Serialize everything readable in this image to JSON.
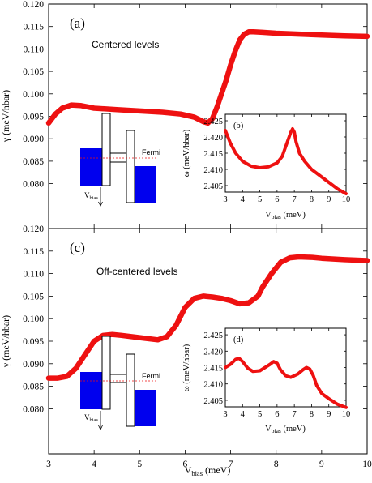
{
  "chart_data": [
    {
      "id": "a",
      "type": "line",
      "panel_label": "(a)",
      "annotation": "Centered levels",
      "ylabel": "γ (meV/hbar)",
      "xlim": [
        3,
        10
      ],
      "ylim": [
        0.07,
        0.12
      ],
      "xticks": [
        "3",
        "4",
        "5",
        "6",
        "7",
        "8",
        "9",
        "10"
      ],
      "yticks": [
        "0.080",
        "0.085",
        "0.090",
        "0.095",
        "0.100",
        "0.105",
        "0.110",
        "0.115",
        "0.120"
      ],
      "series": [
        {
          "color": "#ee1111",
          "x": [
            3.0,
            3.15,
            3.3,
            3.5,
            3.7,
            4.0,
            4.5,
            5.0,
            5.5,
            5.9,
            6.2,
            6.4,
            6.5,
            6.6,
            6.7,
            6.8,
            6.9,
            7.0,
            7.1,
            7.2,
            7.3,
            7.4,
            7.5,
            7.7,
            8.0,
            8.5,
            9.0,
            9.5,
            10.0
          ],
          "y": [
            0.0935,
            0.0955,
            0.0968,
            0.0975,
            0.0974,
            0.0968,
            0.0965,
            0.0962,
            0.0959,
            0.0955,
            0.0948,
            0.0938,
            0.0935,
            0.0945,
            0.097,
            0.1,
            0.103,
            0.1065,
            0.1095,
            0.112,
            0.1133,
            0.1138,
            0.1138,
            0.1137,
            0.1135,
            0.1133,
            0.1131,
            0.1129,
            0.1128
          ]
        }
      ]
    },
    {
      "id": "b",
      "type": "line",
      "panel_label": "(b)",
      "xlabel": "V",
      "xlabel_sub": "bias",
      "xlabel_unit": " (meV)",
      "ylabel": "ω (meV/hbar)",
      "xlim": [
        3,
        10
      ],
      "ylim": [
        2.403,
        2.427
      ],
      "xticks": [
        "3",
        "4",
        "5",
        "6",
        "7",
        "8",
        "9",
        "10"
      ],
      "yticks": [
        "2.405",
        "2.410",
        "2.415",
        "2.420",
        "2.425"
      ],
      "series": [
        {
          "color": "#ee1111",
          "x": [
            3.0,
            3.3,
            3.6,
            4.0,
            4.5,
            5.0,
            5.5,
            6.0,
            6.3,
            6.6,
            6.8,
            6.9,
            7.0,
            7.1,
            7.3,
            7.6,
            8.0,
            8.5,
            9.0,
            9.5,
            10.0
          ],
          "y": [
            2.422,
            2.418,
            2.415,
            2.4125,
            2.411,
            2.4105,
            2.4108,
            2.412,
            2.414,
            2.4185,
            2.4215,
            2.4225,
            2.4215,
            2.4185,
            2.415,
            2.4125,
            2.41,
            2.408,
            2.406,
            2.404,
            2.4025
          ]
        }
      ]
    },
    {
      "id": "c",
      "type": "line",
      "panel_label": "(c)",
      "annotation": "Off-centered levels",
      "xlabel": "V",
      "xlabel_sub": "bias",
      "xlabel_unit": " (meV)",
      "ylabel": "γ (meV/hbar)",
      "xlim": [
        3,
        10
      ],
      "ylim": [
        0.07,
        0.12
      ],
      "xticks": [
        "3",
        "4",
        "5",
        "6",
        "7",
        "8",
        "9",
        "10"
      ],
      "yticks": [
        "0.080",
        "0.085",
        "0.090",
        "0.095",
        "0.100",
        "0.105",
        "0.110",
        "0.115",
        "0.120"
      ],
      "series": [
        {
          "color": "#ee1111",
          "x": [
            3.0,
            3.2,
            3.4,
            3.6,
            3.8,
            4.0,
            4.2,
            4.4,
            4.6,
            5.0,
            5.4,
            5.6,
            5.8,
            6.0,
            6.2,
            6.4,
            6.6,
            6.8,
            7.0,
            7.2,
            7.4,
            7.6,
            7.7,
            7.9,
            8.1,
            8.3,
            8.5,
            8.8,
            9.0,
            9.5,
            10.0
          ],
          "y": [
            0.0868,
            0.0868,
            0.0872,
            0.089,
            0.092,
            0.095,
            0.0963,
            0.0965,
            0.0963,
            0.0958,
            0.0953,
            0.096,
            0.0985,
            0.1025,
            0.1045,
            0.105,
            0.1048,
            0.1045,
            0.104,
            0.1033,
            0.1035,
            0.105,
            0.107,
            0.11,
            0.1125,
            0.1135,
            0.1137,
            0.1136,
            0.1134,
            0.1131,
            0.1129
          ]
        }
      ]
    },
    {
      "id": "d",
      "type": "line",
      "panel_label": "(d)",
      "xlabel": "V",
      "xlabel_sub": "bias",
      "xlabel_unit": " (meV)",
      "ylabel": "ω (meV/hbar)",
      "xlim": [
        3,
        10
      ],
      "ylim": [
        2.403,
        2.427
      ],
      "xticks": [
        "3",
        "4",
        "5",
        "6",
        "7",
        "8",
        "9",
        "10"
      ],
      "yticks": [
        "2.405",
        "2.410",
        "2.415",
        "2.420",
        "2.425"
      ],
      "series": [
        {
          "color": "#ee1111",
          "x": [
            3.0,
            3.3,
            3.6,
            3.8,
            4.0,
            4.3,
            4.6,
            5.0,
            5.3,
            5.6,
            5.8,
            6.0,
            6.2,
            6.5,
            6.8,
            7.2,
            7.5,
            7.7,
            7.9,
            8.1,
            8.3,
            8.6,
            9.0,
            9.5,
            10.0
          ],
          "y": [
            2.415,
            2.416,
            2.4175,
            2.4178,
            2.4168,
            2.4148,
            2.4138,
            2.414,
            2.415,
            2.416,
            2.4168,
            2.4163,
            2.4143,
            2.4125,
            2.412,
            2.413,
            2.4143,
            2.415,
            2.4145,
            2.4125,
            2.4095,
            2.407,
            2.4055,
            2.4038,
            2.4028
          ]
        }
      ]
    }
  ],
  "schematic_labels": {
    "fermi": "Fermi",
    "vbias_main": "V",
    "vbias_sub": "bias"
  },
  "colors": {
    "curve": "#ee1111",
    "lead": "#0000ee",
    "fermi_line": "#ee1111"
  }
}
